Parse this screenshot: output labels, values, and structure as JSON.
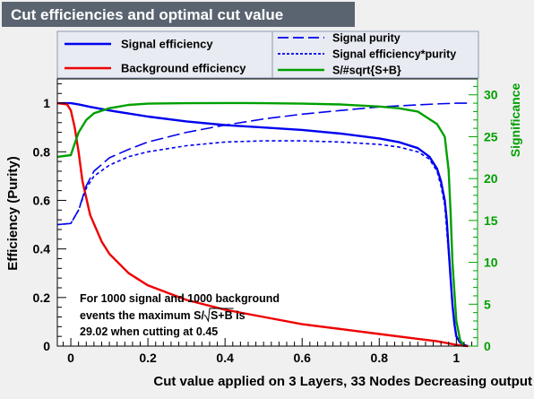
{
  "chart_data": {
    "type": "line",
    "title": "Cut efficiencies and optimal cut value",
    "xlabel": "Cut value applied on 3 Layers, 33 Nodes Decreasing output",
    "ylabel": "Efficiency (Purity)",
    "y2label": "Significance",
    "xlim": [
      -0.035,
      1.055
    ],
    "ylim": [
      0,
      1.1
    ],
    "y2lim": [
      0,
      31.9
    ],
    "x_ticks": [
      "0",
      "0.2",
      "0.4",
      "0.6",
      "0.8",
      "1"
    ],
    "y_ticks": [
      "0",
      "0.2",
      "0.4",
      "0.6",
      "0.8",
      "1"
    ],
    "y2_ticks": [
      "0",
      "5",
      "10",
      "15",
      "20",
      "25",
      "30"
    ],
    "grid": false,
    "legend_position": "top",
    "series": [
      {
        "name": "Signal efficiency",
        "axis": "left",
        "color": "#0000ee",
        "style": "solid",
        "x": [
          -0.035,
          0.0,
          0.02,
          0.05,
          0.1,
          0.2,
          0.3,
          0.4,
          0.5,
          0.6,
          0.7,
          0.8,
          0.85,
          0.9,
          0.93,
          0.95,
          0.96,
          0.97,
          0.975,
          0.98,
          0.985,
          0.99,
          0.995,
          1.0,
          1.01,
          1.02,
          1.03
        ],
        "y": [
          1.0,
          1.0,
          0.995,
          0.985,
          0.97,
          0.945,
          0.925,
          0.91,
          0.9,
          0.89,
          0.875,
          0.855,
          0.84,
          0.815,
          0.78,
          0.73,
          0.68,
          0.6,
          0.52,
          0.4,
          0.28,
          0.17,
          0.09,
          0.04,
          0.015,
          0.005,
          0.0
        ]
      },
      {
        "name": "Background efficiency",
        "axis": "left",
        "color": "#ee0000",
        "style": "solid",
        "x": [
          -0.035,
          -0.01,
          0.0,
          0.01,
          0.02,
          0.03,
          0.05,
          0.08,
          0.1,
          0.15,
          0.2,
          0.3,
          0.4,
          0.5,
          0.6,
          0.7,
          0.8,
          0.9,
          0.95,
          1.0,
          1.02,
          1.03
        ],
        "y": [
          1.0,
          0.995,
          0.97,
          0.9,
          0.8,
          0.68,
          0.54,
          0.43,
          0.38,
          0.3,
          0.25,
          0.19,
          0.15,
          0.12,
          0.09,
          0.07,
          0.05,
          0.03,
          0.02,
          0.005,
          0.001,
          0.0
        ]
      },
      {
        "name": "Signal purity",
        "axis": "left",
        "color": "#0000ee",
        "style": "dashed",
        "x": [
          -0.035,
          0.0,
          0.02,
          0.04,
          0.06,
          0.1,
          0.15,
          0.2,
          0.3,
          0.4,
          0.5,
          0.6,
          0.7,
          0.8,
          0.9,
          0.95,
          1.0,
          1.03
        ],
        "y": [
          0.5,
          0.505,
          0.56,
          0.66,
          0.72,
          0.775,
          0.81,
          0.84,
          0.88,
          0.91,
          0.935,
          0.955,
          0.97,
          0.985,
          0.993,
          0.997,
          1.0,
          1.0
        ]
      },
      {
        "name": "Signal efficiency*purity",
        "axis": "left",
        "color": "#0000ee",
        "style": "dotted",
        "x": [
          -0.035,
          0.0,
          0.02,
          0.04,
          0.06,
          0.1,
          0.15,
          0.2,
          0.3,
          0.4,
          0.5,
          0.6,
          0.7,
          0.8,
          0.85,
          0.9,
          0.93,
          0.95,
          0.96,
          0.97,
          0.98,
          0.99,
          1.0,
          1.01,
          1.03
        ],
        "y": [
          0.5,
          0.505,
          0.56,
          0.65,
          0.7,
          0.745,
          0.78,
          0.8,
          0.825,
          0.84,
          0.845,
          0.845,
          0.84,
          0.83,
          0.82,
          0.8,
          0.77,
          0.72,
          0.66,
          0.58,
          0.38,
          0.17,
          0.04,
          0.01,
          0.0
        ]
      },
      {
        "name": "S/#sqrt{S+B}",
        "axis": "right",
        "color": "#00a000",
        "style": "solid",
        "x": [
          -0.035,
          0.0,
          0.005,
          0.02,
          0.04,
          0.06,
          0.1,
          0.15,
          0.2,
          0.3,
          0.4,
          0.45,
          0.5,
          0.6,
          0.7,
          0.8,
          0.85,
          0.9,
          0.95,
          0.97,
          0.98,
          0.985,
          0.99,
          1.0,
          1.01,
          1.02
        ],
        "y": [
          22.6,
          22.8,
          23.5,
          25.5,
          27.0,
          27.8,
          28.4,
          28.8,
          28.95,
          29.0,
          29.02,
          29.02,
          29.0,
          28.95,
          28.85,
          28.6,
          28.4,
          28.0,
          26.5,
          25.0,
          21.0,
          16.0,
          10.0,
          3.0,
          0.7,
          0.1
        ]
      }
    ],
    "annotation": {
      "line1": "For 1000 signal and 1000 background",
      "line2_prefix": "events the maximum S/",
      "line2_radicand": "S+B",
      "line2_suffix": " is",
      "line3": "29.02 when cutting at  0.45"
    }
  }
}
